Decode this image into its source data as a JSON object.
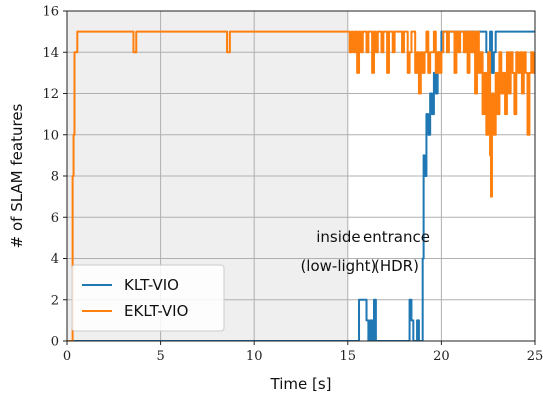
{
  "chart_data": {
    "type": "line",
    "xlabel": "Time [s]",
    "ylabel": "# of SLAM features",
    "xlim": [
      0,
      25
    ],
    "ylim": [
      0,
      16
    ],
    "xticks": [
      "0",
      "5",
      "10",
      "15",
      "20",
      "25"
    ],
    "yticks": [
      "0",
      "2",
      "4",
      "6",
      "8",
      "10",
      "12",
      "14",
      "16"
    ],
    "grid": true,
    "legend_position": "bottom-left",
    "shaded_region": {
      "x_range": [
        0,
        15
      ],
      "color": "#efefef"
    },
    "annotations": [
      {
        "lines": [
          "inside",
          "(low-light)"
        ],
        "x": 14.5,
        "y": 4.8
      },
      {
        "lines": [
          "entrance",
          "(HDR)"
        ],
        "x": 17.6,
        "y": 4.8
      }
    ],
    "series": [
      {
        "name": "KLT-VIO",
        "color": "#1f77b4",
        "x": [
          0,
          15.2,
          15.2,
          15.4,
          15.6,
          15.6,
          16.0,
          16.0,
          16.1,
          16.2,
          16.3,
          16.4,
          16.4,
          16.5,
          16.6,
          16.7,
          17.0,
          17.6,
          18.2,
          18.3,
          18.4,
          18.5,
          18.6,
          18.7,
          18.8,
          19.0,
          19.05,
          19.1,
          19.2,
          19.3,
          19.4,
          19.5,
          19.6,
          19.7,
          19.8,
          19.9,
          20.0,
          20.1,
          20.2,
          20.4,
          20.6,
          21.0,
          21.5,
          22.0,
          22.3,
          22.4,
          22.5,
          22.6,
          22.7,
          22.8,
          22.9,
          23.0,
          23.1,
          23.2,
          24.0,
          25.0
        ],
        "values": [
          0,
          0,
          0,
          0,
          0,
          2,
          2,
          1,
          0,
          1,
          0,
          2,
          2,
          0,
          0,
          0,
          0,
          0,
          0,
          2,
          1,
          0,
          0,
          1,
          0,
          4,
          9,
          8,
          11,
          10,
          12,
          11,
          13,
          12,
          14,
          14,
          15,
          15,
          15,
          15,
          15,
          15,
          15,
          15,
          15,
          14,
          12,
          15,
          13,
          14,
          15,
          15,
          15,
          15,
          15,
          15
        ]
      },
      {
        "name": "EKLT-VIO",
        "color": "#ff7f0e",
        "x": [
          0,
          0.3,
          0.35,
          0.4,
          0.5,
          0.55,
          3.5,
          3.55,
          3.65,
          3.7,
          8.5,
          8.55,
          8.65,
          8.7,
          15.0,
          15.1,
          15.2,
          15.3,
          15.4,
          15.5,
          15.6,
          15.7,
          15.8,
          15.9,
          16.0,
          16.1,
          16.2,
          16.3,
          16.4,
          16.5,
          16.6,
          16.7,
          16.8,
          16.9,
          17.0,
          17.1,
          17.2,
          17.3,
          17.4,
          17.5,
          17.6,
          17.7,
          17.8,
          17.9,
          18.0,
          18.1,
          18.2,
          18.3,
          18.4,
          18.5,
          18.6,
          18.7,
          18.8,
          18.9,
          19.0,
          19.1,
          19.2,
          19.3,
          19.4,
          19.5,
          19.6,
          19.7,
          19.8,
          19.9,
          20.0,
          20.1,
          20.2,
          20.3,
          20.4,
          20.5,
          20.6,
          20.7,
          20.8,
          20.9,
          21.0,
          21.1,
          21.2,
          21.3,
          21.4,
          21.5,
          21.6,
          21.7,
          21.8,
          21.9,
          22.0,
          22.1,
          22.2,
          22.3,
          22.4,
          22.5,
          22.6,
          22.65,
          22.7,
          22.8,
          22.9,
          23.0,
          23.1,
          23.2,
          23.3,
          23.4,
          23.5,
          23.6,
          23.7,
          23.8,
          23.9,
          24.0,
          24.1,
          24.2,
          24.3,
          24.4,
          24.5,
          24.6,
          24.7,
          24.8,
          24.9,
          25.0
        ],
        "values": [
          0,
          8,
          10,
          14,
          14,
          15,
          15,
          14,
          14,
          15,
          15,
          14,
          14,
          15,
          15,
          14,
          15,
          14,
          15,
          13,
          15,
          14,
          15,
          15,
          14,
          15,
          15,
          13,
          15,
          14,
          15,
          15,
          14,
          15,
          15,
          13,
          15,
          15,
          14,
          15,
          15,
          15,
          15,
          14,
          15,
          15,
          13,
          14,
          15,
          15,
          13,
          14,
          12,
          14,
          13,
          14,
          15,
          13,
          14,
          14,
          15,
          13,
          14,
          13,
          14,
          15,
          15,
          14,
          15,
          15,
          15,
          13,
          15,
          14,
          15,
          15,
          14,
          15,
          13,
          15,
          14,
          15,
          12,
          15,
          13,
          14,
          11,
          13,
          10,
          14,
          9,
          7,
          12,
          10,
          13,
          11,
          14,
          12,
          13,
          11,
          14,
          12,
          14,
          13,
          11,
          14,
          13,
          14,
          12,
          14,
          13,
          10,
          13,
          14,
          13,
          14
        ]
      }
    ]
  }
}
